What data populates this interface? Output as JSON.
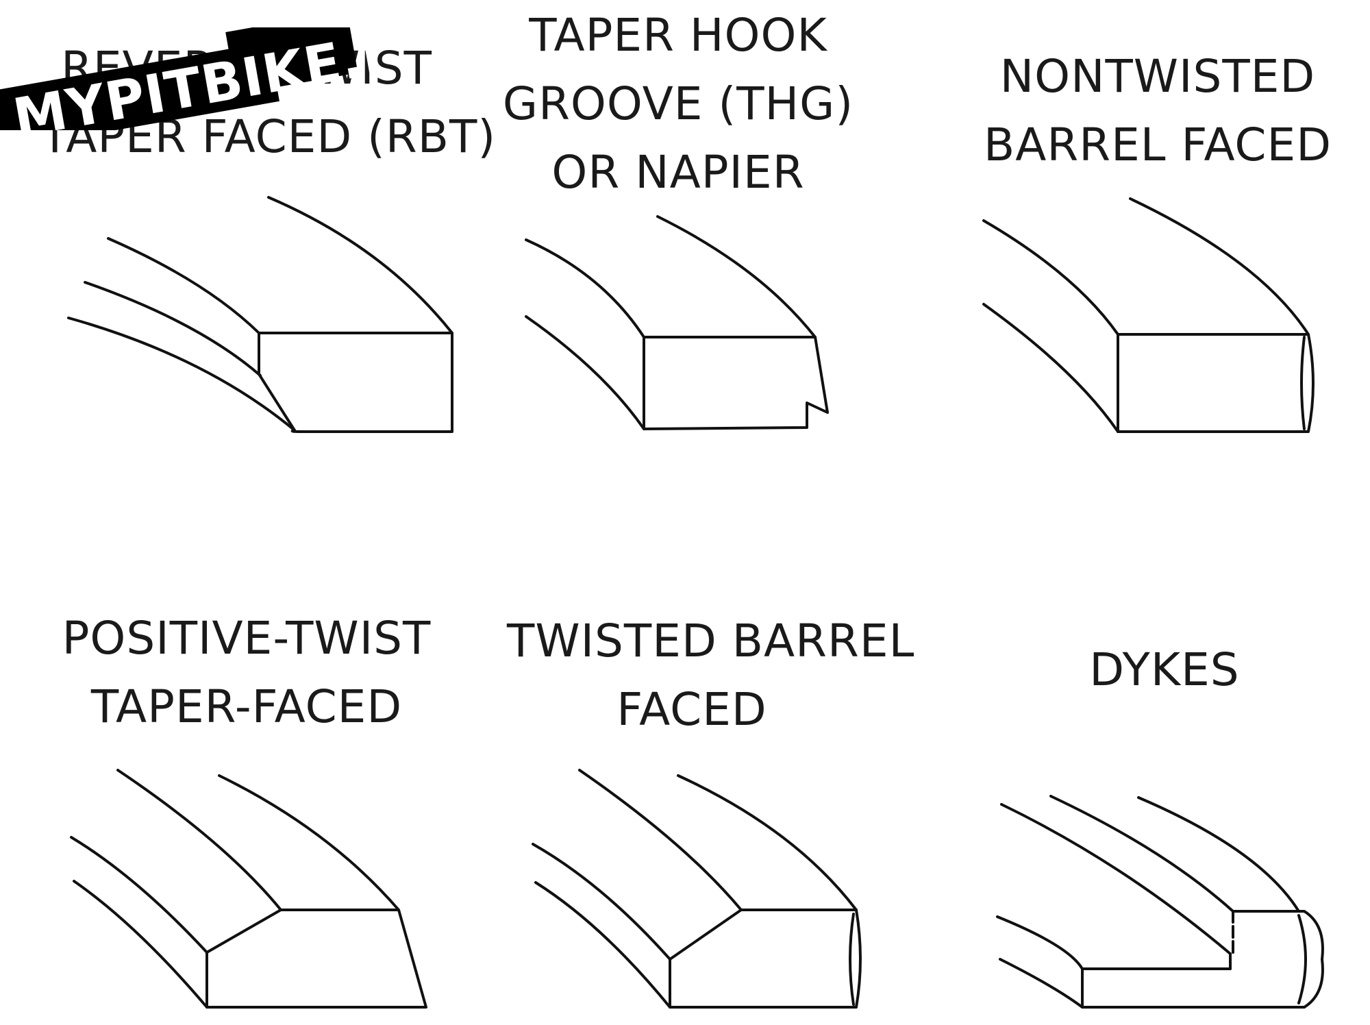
{
  "watermark": {
    "text": "MYPITBIKE.RU",
    "color": "#000000"
  },
  "diagrams": [
    {
      "id": "rbt",
      "lines": [
        "REVERSE-TWIST",
        "TAPER FACED (RBT)"
      ]
    },
    {
      "id": "thg",
      "lines": [
        "TAPER HOOK",
        "GROOVE (THG)",
        "OR NAPIER"
      ]
    },
    {
      "id": "ntbf",
      "lines": [
        "NONTWISTED",
        "BARREL FACED"
      ]
    },
    {
      "id": "ptt",
      "lines": [
        "POSITIVE-TWIST",
        "TAPER-FACED"
      ]
    },
    {
      "id": "tbf",
      "lines": [
        "TWISTED BARREL",
        "FACED"
      ]
    },
    {
      "id": "dykes",
      "lines": [
        "DYKES"
      ]
    }
  ]
}
